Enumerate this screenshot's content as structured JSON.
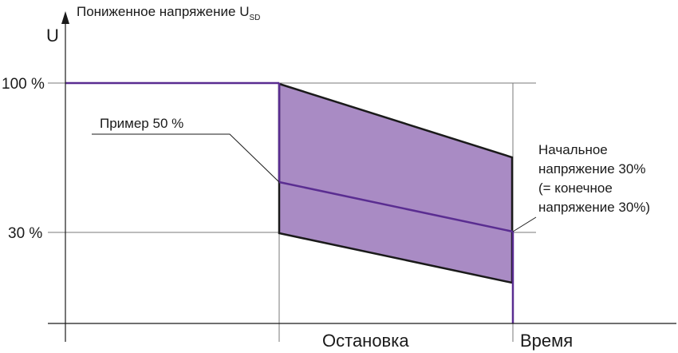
{
  "title": "Пониженное напряжение U",
  "title_subscript": "SD",
  "y_axis_label": "U",
  "x_axis_label": "Время",
  "phase_label": "Остановка",
  "tick_100": "100 %",
  "tick_30": "30 %",
  "example_label": "Пример 50 %",
  "annotation_lines": [
    "Начальное",
    "напряжение 30%",
    "(= конечное",
    "напряжение 30%)"
  ],
  "colors": {
    "band_fill": "#a98bc4",
    "purple_line": "#5a2d91",
    "outline": "#1a1a1a",
    "grid": "#7a7a7a"
  }
}
